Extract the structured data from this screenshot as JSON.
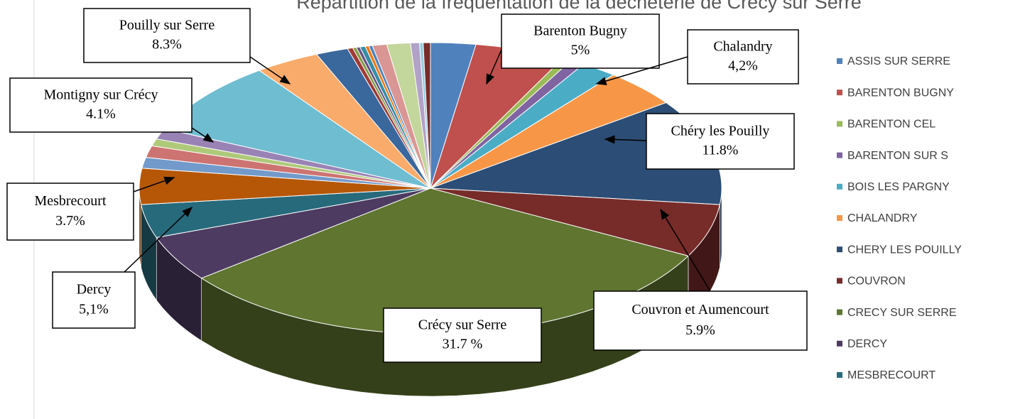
{
  "chart_data": {
    "type": "pie3d",
    "title": "Répartition de la fréquentation de la déchèterie de Crécy sur Serre",
    "categories": [
      "ASSIS SUR SERRE",
      "BARENTON BUGNY",
      "BARENTON CEL",
      "BARENTON SUR S",
      "BOIS LES PARGNY",
      "CHALANDRY",
      "CHERY LES POUILLY",
      "COUVRON",
      "CRECY SUR SERRE",
      "DERCY",
      "MESBRECOURT",
      null,
      null,
      null,
      null,
      null,
      null,
      null,
      null,
      null,
      null,
      null,
      null,
      null,
      null,
      null,
      null,
      null,
      null,
      null
    ],
    "values": [
      2.5,
      5,
      0.5,
      0.8,
      2,
      4.2,
      11.8,
      5.9,
      31.7,
      5.1,
      3.7,
      4,
      1.2,
      1.3,
      0.8,
      1.2,
      8.3,
      3.6,
      1.8,
      0.3,
      0.2,
      0.2,
      0.3,
      0.2,
      0.2,
      0.8,
      1.3,
      0.5,
      0.2,
      0.4
    ],
    "colors": [
      "#4F81BD",
      "#C0504D",
      "#9BBB59",
      "#8064A2",
      "#4BACC6",
      "#F79646",
      "#2C4D75",
      "#772C2A",
      "#5F7530",
      "#4D3B62",
      "#276A7C",
      "#B65708",
      "#729ACA",
      "#CD7371",
      "#AFC97A",
      "#9983B5",
      "#6FBDD1",
      "#F9AB6B",
      "#3A679C",
      "#9F3B38",
      "#7E9C40",
      "#664F83",
      "#358EA6",
      "#F3760D",
      "#4F81BD",
      "#D99694",
      "#C3D69B",
      "#B3A2C7",
      "#93CDDD",
      "#772C2A"
    ],
    "legend_position": "right",
    "annotations": [
      {
        "name": "Pouilly sur Serre",
        "value": "8.3%"
      },
      {
        "name": "Barenton Bugny",
        "value": "5%"
      },
      {
        "name": "Chalandry",
        "value": "4,2%"
      },
      {
        "name": "Montigny sur Crécy",
        "value": "4.1%"
      },
      {
        "name": "Chéry les Pouilly",
        "value": "11.8%"
      },
      {
        "name": "Mesbrecourt",
        "value": "3.7%"
      },
      {
        "name": "Dercy",
        "value": "5,1%"
      },
      {
        "name": "Crécy sur Serre",
        "value": "31.7 %"
      },
      {
        "name": "Couvron et Aumencourt",
        "value": "5.9%"
      }
    ]
  }
}
